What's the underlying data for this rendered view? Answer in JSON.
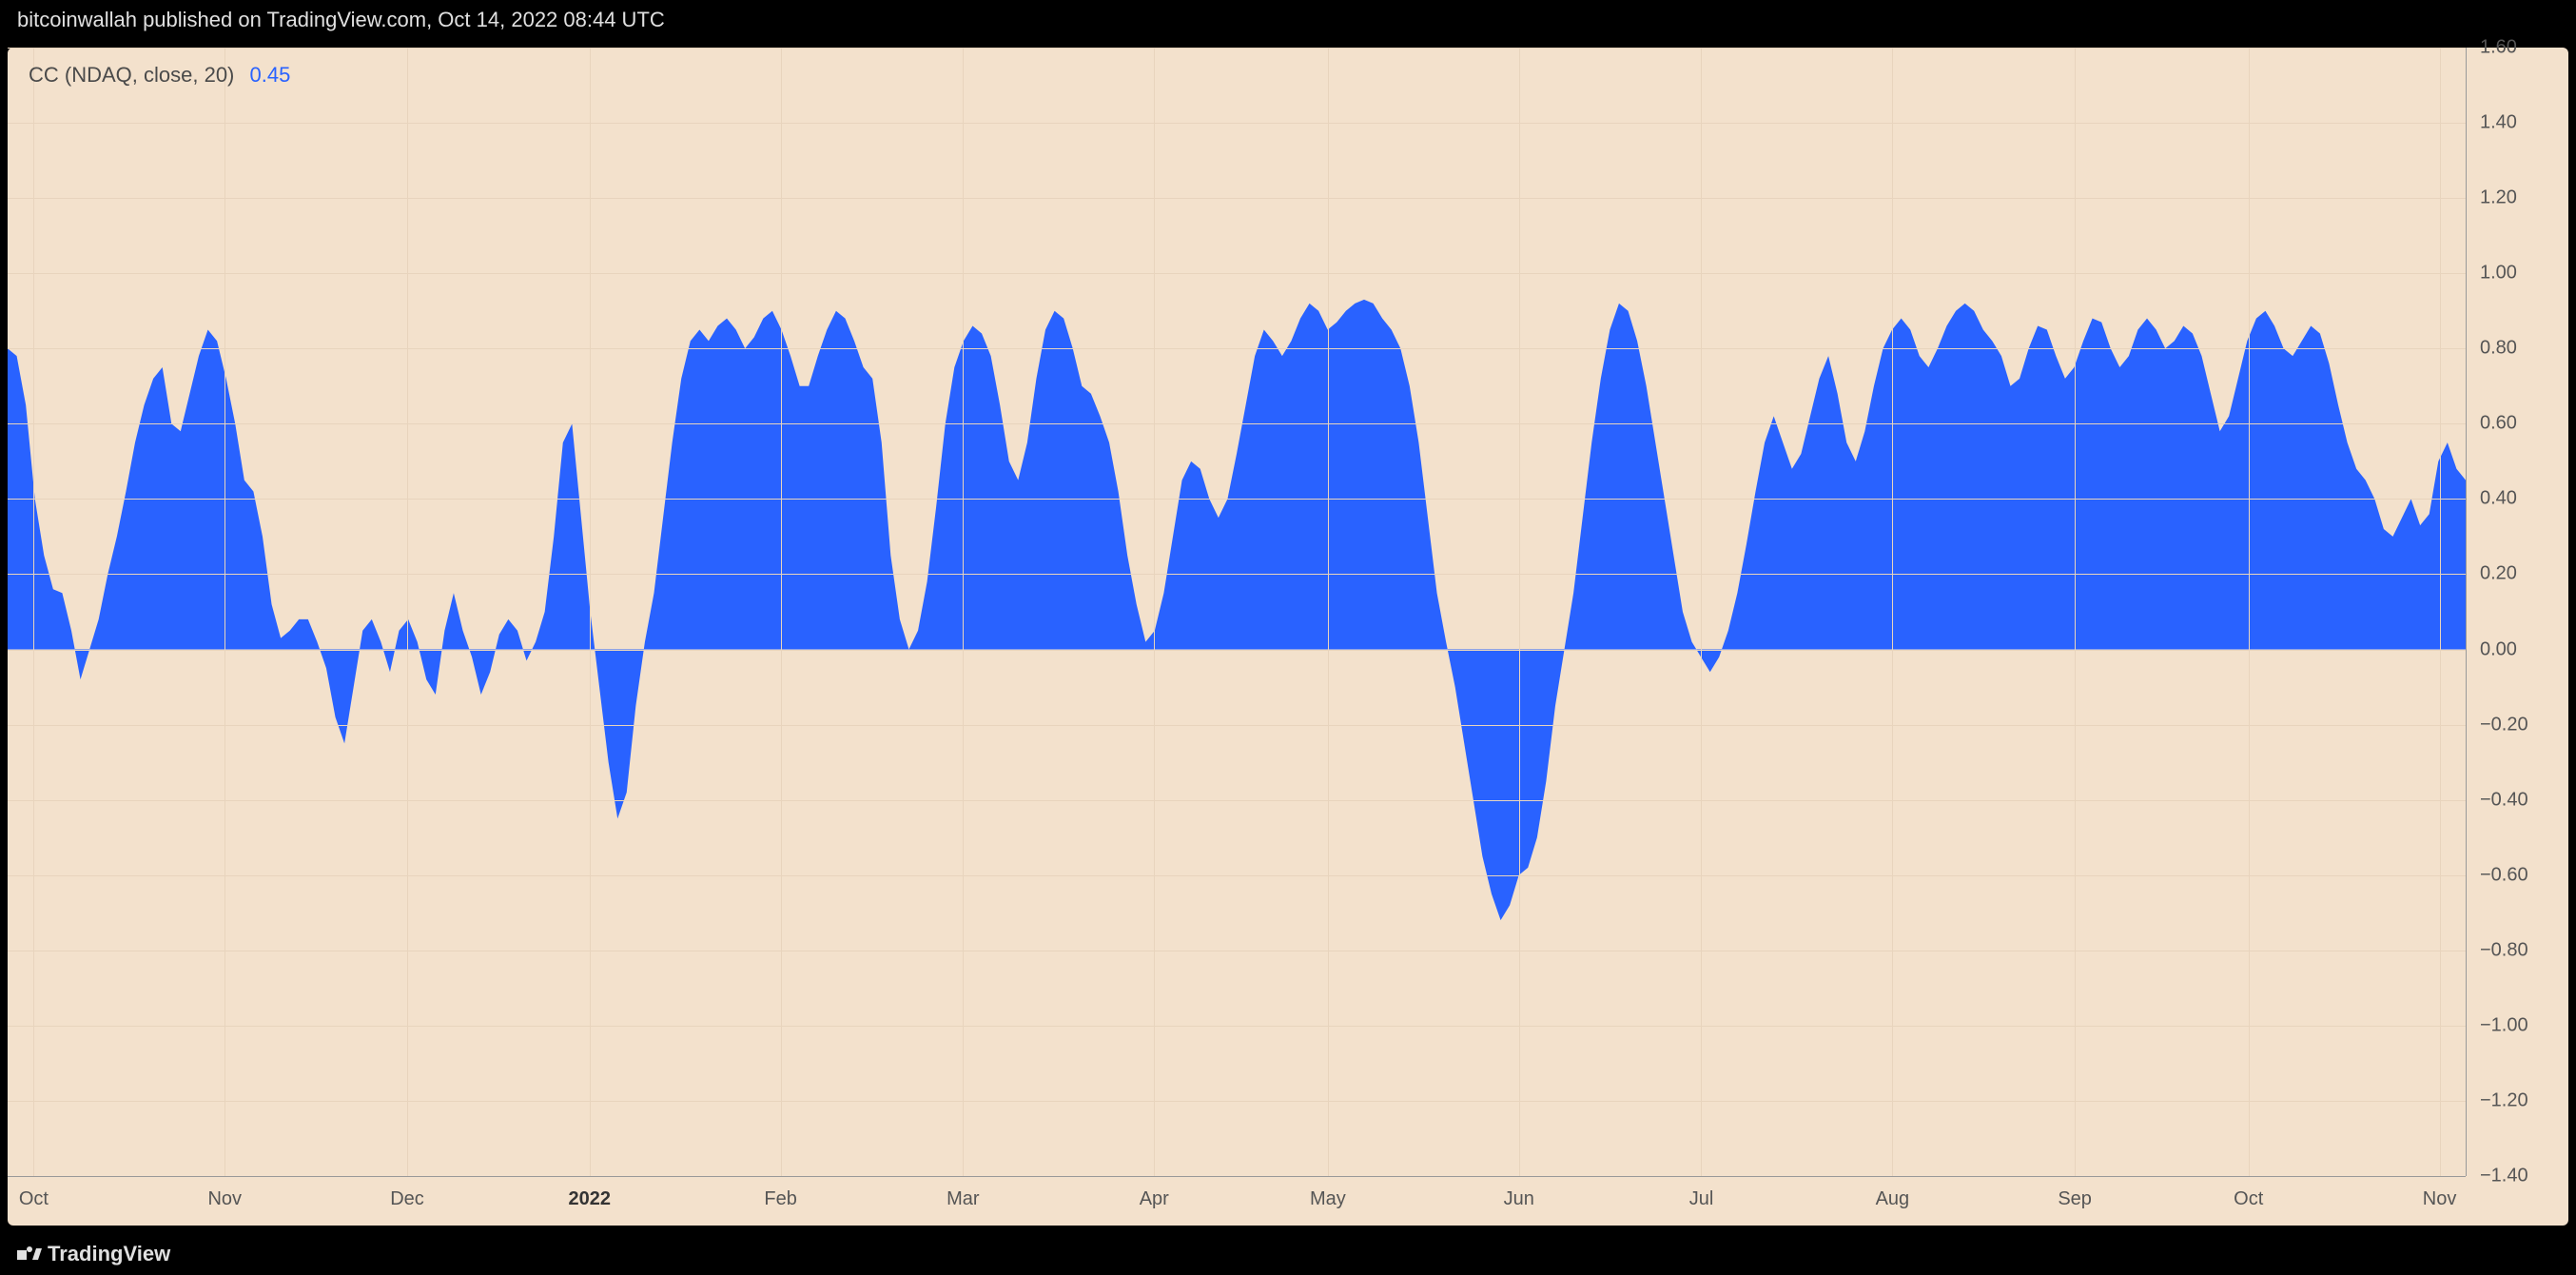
{
  "header": {
    "attribution": "bitcoinwallah published on TradingView.com, Oct 14, 2022 08:44 UTC"
  },
  "footer": {
    "brand": "TradingView"
  },
  "chart": {
    "indicator_label": "CC (NDAQ, close, 20)",
    "indicator_value": "0.45",
    "indicator_value_color": "#2962ff",
    "type": "area",
    "fill_color": "#2962ff",
    "background_color": "#f3e1cc",
    "grid_color": "#e8d4bd",
    "axis_line_color": "#999999",
    "axis_text_color": "#555555",
    "label_fontsize": 20,
    "y_axis": {
      "min": -1.4,
      "max": 1.6,
      "tick_step": 0.2,
      "ticks": [
        "1.60",
        "1.40",
        "1.20",
        "1.00",
        "0.80",
        "0.60",
        "0.40",
        "0.20",
        "0.00",
        "−0.20",
        "−0.40",
        "−0.60",
        "−0.80",
        "−1.00",
        "−1.20",
        "−1.40"
      ],
      "tick_values": [
        1.6,
        1.4,
        1.2,
        1.0,
        0.8,
        0.6,
        0.4,
        0.2,
        0.0,
        -0.2,
        -0.4,
        -0.6,
        -0.8,
        -1.0,
        -1.2,
        -1.4
      ]
    },
    "x_axis": {
      "labels": [
        "Oct",
        "Nov",
        "Dec",
        "2022",
        "Feb",
        "Mar",
        "Apr",
        "May",
        "Jun",
        "Jul",
        "Aug",
        "Sep",
        "Oct",
        "Nov"
      ],
      "positions_index": [
        3,
        25,
        46,
        67,
        89,
        110,
        132,
        152,
        174,
        195,
        217,
        238,
        258,
        280
      ],
      "n_points": 284,
      "bold_index": 3
    },
    "series": {
      "values": [
        0.8,
        0.78,
        0.65,
        0.4,
        0.25,
        0.16,
        0.15,
        0.05,
        -0.08,
        0.0,
        0.08,
        0.2,
        0.3,
        0.42,
        0.55,
        0.65,
        0.72,
        0.75,
        0.6,
        0.58,
        0.68,
        0.78,
        0.85,
        0.82,
        0.72,
        0.6,
        0.45,
        0.42,
        0.3,
        0.12,
        0.03,
        0.05,
        0.08,
        0.08,
        0.02,
        -0.05,
        -0.18,
        -0.25,
        -0.1,
        0.05,
        0.08,
        0.02,
        -0.06,
        0.05,
        0.08,
        0.02,
        -0.08,
        -0.12,
        0.05,
        0.15,
        0.05,
        -0.02,
        -0.12,
        -0.06,
        0.04,
        0.08,
        0.05,
        -0.03,
        0.02,
        0.1,
        0.3,
        0.55,
        0.6,
        0.35,
        0.1,
        -0.1,
        -0.3,
        -0.45,
        -0.38,
        -0.15,
        0.02,
        0.15,
        0.35,
        0.55,
        0.72,
        0.82,
        0.85,
        0.82,
        0.86,
        0.88,
        0.85,
        0.8,
        0.83,
        0.88,
        0.9,
        0.85,
        0.78,
        0.7,
        0.7,
        0.78,
        0.85,
        0.9,
        0.88,
        0.82,
        0.75,
        0.72,
        0.55,
        0.25,
        0.08,
        0.0,
        0.05,
        0.18,
        0.38,
        0.6,
        0.75,
        0.82,
        0.86,
        0.84,
        0.78,
        0.65,
        0.5,
        0.45,
        0.55,
        0.72,
        0.85,
        0.9,
        0.88,
        0.8,
        0.7,
        0.68,
        0.62,
        0.55,
        0.42,
        0.25,
        0.12,
        0.02,
        0.05,
        0.15,
        0.3,
        0.45,
        0.5,
        0.48,
        0.4,
        0.35,
        0.4,
        0.52,
        0.65,
        0.78,
        0.85,
        0.82,
        0.78,
        0.82,
        0.88,
        0.92,
        0.9,
        0.85,
        0.87,
        0.9,
        0.92,
        0.93,
        0.92,
        0.88,
        0.85,
        0.8,
        0.7,
        0.55,
        0.35,
        0.15,
        0.02,
        -0.1,
        -0.25,
        -0.4,
        -0.55,
        -0.65,
        -0.72,
        -0.68,
        -0.6,
        -0.58,
        -0.5,
        -0.35,
        -0.15,
        0.0,
        0.15,
        0.35,
        0.55,
        0.72,
        0.85,
        0.92,
        0.9,
        0.82,
        0.7,
        0.55,
        0.4,
        0.25,
        0.1,
        0.02,
        -0.02,
        -0.06,
        -0.02,
        0.05,
        0.15,
        0.28,
        0.42,
        0.55,
        0.62,
        0.55,
        0.48,
        0.52,
        0.62,
        0.72,
        0.78,
        0.68,
        0.55,
        0.5,
        0.58,
        0.7,
        0.8,
        0.85,
        0.88,
        0.85,
        0.78,
        0.75,
        0.8,
        0.86,
        0.9,
        0.92,
        0.9,
        0.85,
        0.82,
        0.78,
        0.7,
        0.72,
        0.8,
        0.86,
        0.85,
        0.78,
        0.72,
        0.75,
        0.82,
        0.88,
        0.87,
        0.8,
        0.75,
        0.78,
        0.85,
        0.88,
        0.85,
        0.8,
        0.82,
        0.86,
        0.84,
        0.78,
        0.68,
        0.58,
        0.62,
        0.72,
        0.82,
        0.88,
        0.9,
        0.86,
        0.8,
        0.78,
        0.82,
        0.86,
        0.84,
        0.76,
        0.65,
        0.55,
        0.48,
        0.45,
        0.4,
        0.32,
        0.3,
        0.35,
        0.4,
        0.33,
        0.36,
        0.5,
        0.55,
        0.48,
        0.45
      ]
    }
  }
}
